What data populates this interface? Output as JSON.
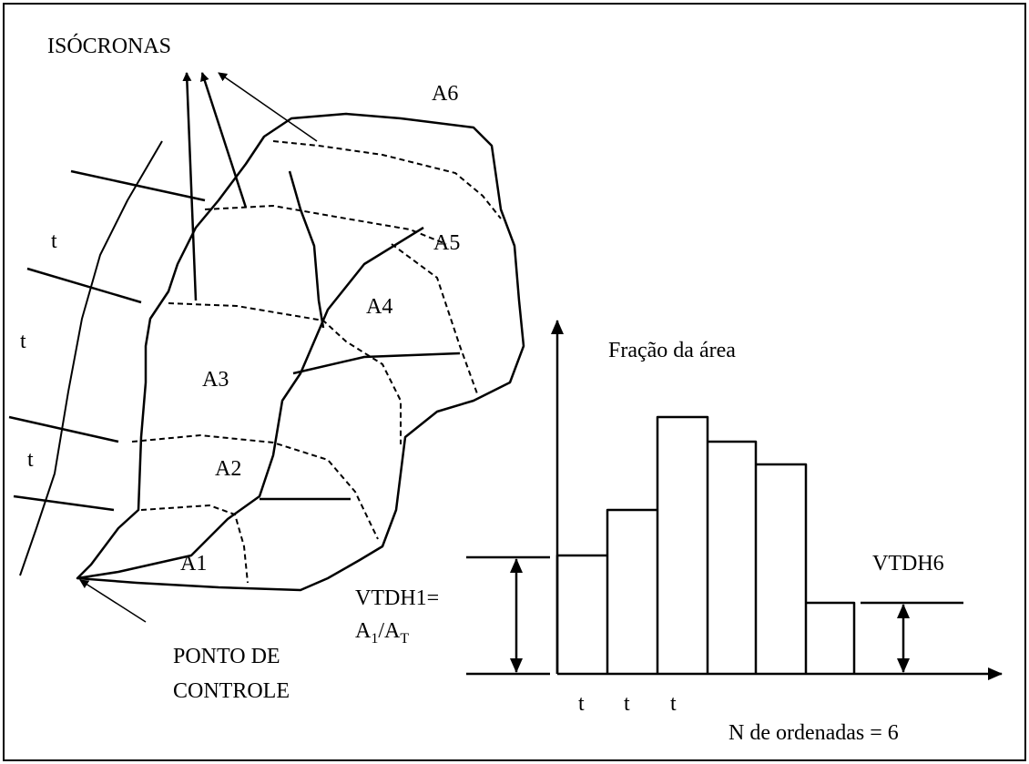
{
  "labels": {
    "isochrones": "ISÓCRONAS",
    "areas": [
      "A6",
      "A5",
      "A4",
      "A3",
      "A2",
      "A1"
    ],
    "left_t": [
      "t",
      "t",
      "t"
    ],
    "y_axis": "Fração da área",
    "vtdh1": "VTDH1=",
    "formula": [
      "A",
      "1",
      "/A",
      "T"
    ],
    "vtdh6": "VTDH6",
    "control_point": [
      "PONTO DE",
      "CONTROLE"
    ],
    "bottom_t": [
      "t",
      "t",
      "t"
    ],
    "ordinates": "N de ordenadas = 6"
  }
}
